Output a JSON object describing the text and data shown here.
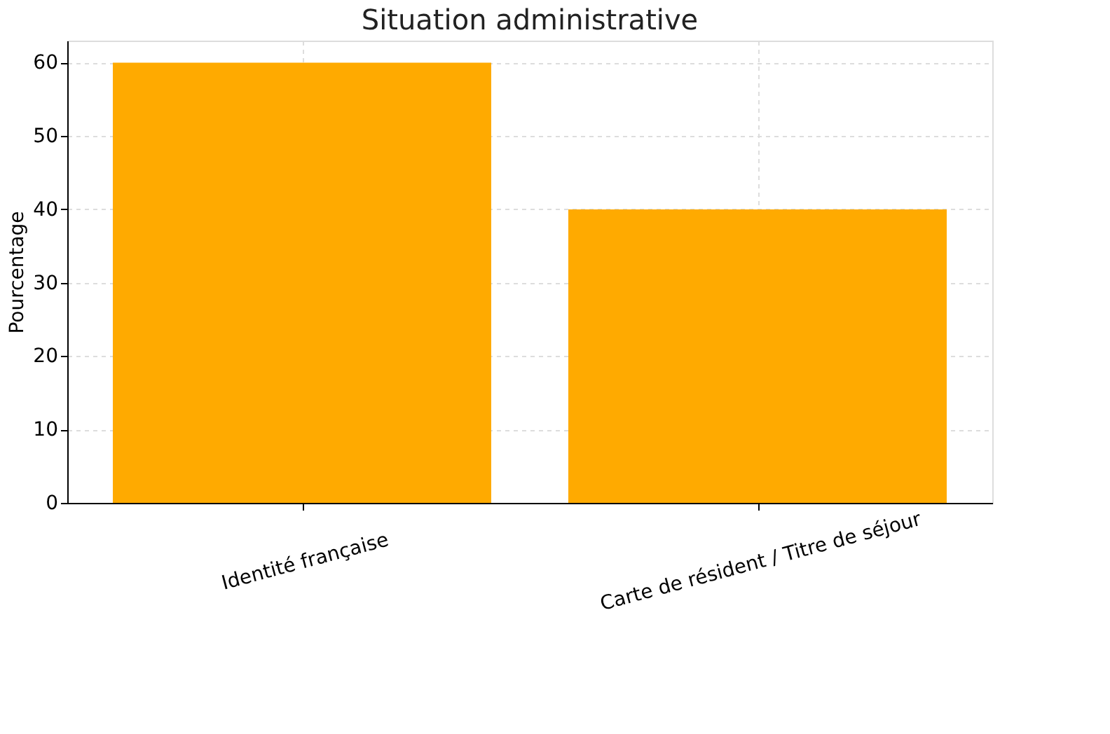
{
  "chart_data": {
    "type": "bar",
    "title": "Situation administrative",
    "ylabel": "Pourcentage",
    "categories": [
      "Identité française",
      "Carte de résident / Titre de séjour"
    ],
    "values": [
      60,
      40
    ],
    "color": "#ffaa00",
    "ylim": [
      0,
      63
    ],
    "yticks": [
      0,
      10,
      20,
      30,
      40,
      50,
      60
    ],
    "grid": true
  }
}
